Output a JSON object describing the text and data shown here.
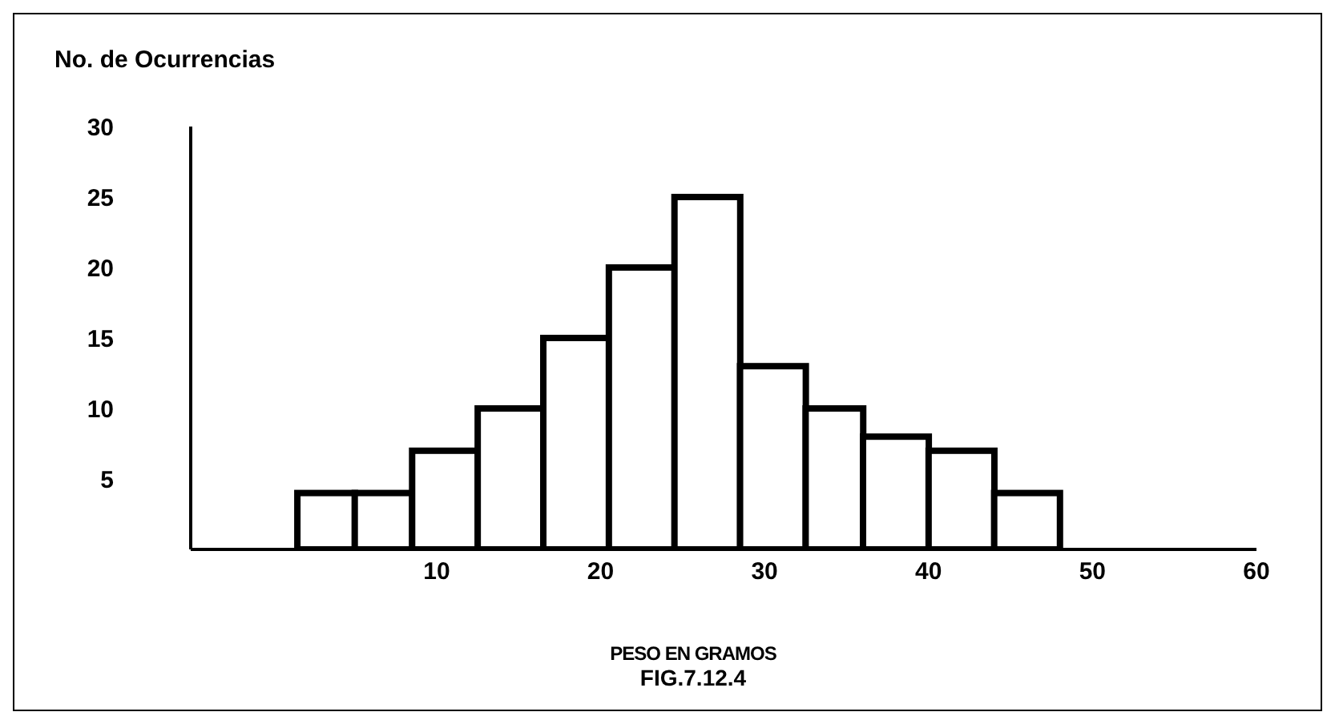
{
  "chart_data": {
    "type": "histogram",
    "ylabel": "No. de Ocurrencias",
    "xlabel": "PESO EN GRAMOS",
    "annotations": [
      "FIG.7.12.4"
    ],
    "bins": [
      1.5,
      5,
      8.5,
      12.5,
      16.5,
      20.5,
      24.5,
      28.5,
      32.5,
      36,
      40,
      44,
      48
    ],
    "values": [
      4,
      4,
      7,
      10,
      15,
      20,
      25,
      13,
      10,
      8,
      7,
      4
    ],
    "color": "#ffffff",
    "xlim": [
      -5,
      60
    ],
    "xticks": [
      10,
      20,
      30,
      40,
      50,
      60
    ],
    "ylim": [
      0,
      30
    ],
    "yticks": [
      5,
      10,
      15,
      20,
      25,
      30
    ],
    "grid": false
  }
}
